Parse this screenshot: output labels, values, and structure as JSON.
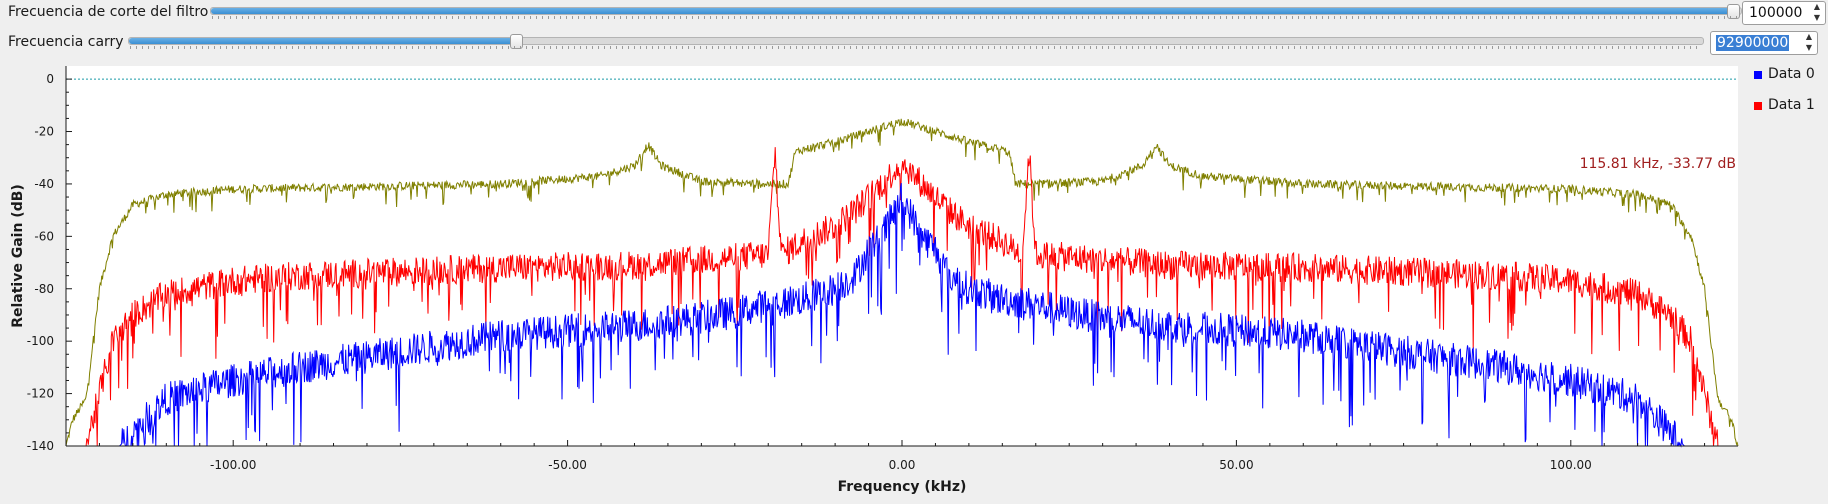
{
  "controls": {
    "cutoff": {
      "label": "Frecuencia de corte del filtro",
      "value": "100000",
      "slider_fraction": 0.995
    },
    "carry": {
      "label": "Frecuencia carry",
      "value": "92900000",
      "slider_fraction": 0.246,
      "value_selected": true
    }
  },
  "legend": {
    "items": [
      {
        "label": "Data 0",
        "color": "#0000ff"
      },
      {
        "label": "Data 1",
        "color": "#ff0000"
      }
    ]
  },
  "marker": {
    "readout": "115.81 kHz, -33.77 dB"
  },
  "chart_data": {
    "type": "line",
    "xlabel": "Frequency (kHz)",
    "ylabel": "Relative Gain (dB)",
    "xlim": [
      -125,
      125
    ],
    "ylim": [
      -140,
      5
    ],
    "xticks": [
      -100,
      -50,
      0,
      50,
      100
    ],
    "xtick_labels": [
      "-100.00",
      "-50.00",
      "0.00",
      "50.00",
      "100.00"
    ],
    "yticks": [
      0,
      -20,
      -40,
      -60,
      -80,
      -100,
      -120,
      -140
    ],
    "ytick_labels": [
      "0",
      "-20",
      "-40",
      "-60",
      "-80",
      "-100",
      "-120",
      "-140"
    ],
    "reference_line": {
      "y": 0,
      "color": "#1b9aa6",
      "style": "dotted"
    },
    "grid": false,
    "legend_position": "right",
    "series": [
      {
        "name": "Data 0",
        "color": "#0000ff",
        "x": [
          -117,
          -110,
          -100,
          -90,
          -80,
          -70,
          -60,
          -50,
          -40,
          -30,
          -25,
          -20,
          -15,
          -10,
          -7,
          -5,
          -3,
          -2,
          0,
          2,
          3,
          5,
          7,
          10,
          15,
          20,
          25,
          30,
          40,
          50,
          60,
          70,
          80,
          90,
          100,
          110,
          117
        ],
        "y": [
          -140,
          -122,
          -115,
          -110,
          -106,
          -102,
          -98,
          -96,
          -94,
          -91,
          -89,
          -86,
          -84,
          -80,
          -75,
          -65,
          -60,
          -55,
          -45,
          -55,
          -60,
          -65,
          -75,
          -80,
          -84,
          -86,
          -89,
          -91,
          -94,
          -96,
          -98,
          -102,
          -106,
          -110,
          -115,
          -122,
          -140
        ],
        "noise_db": 8
      },
      {
        "name": "Data 1",
        "color": "#ff0000",
        "x": [
          -122,
          -118,
          -115,
          -110,
          -100,
          -90,
          -80,
          -60,
          -40,
          -30,
          -20,
          -19,
          -18,
          -15,
          -10,
          -7,
          -5,
          -3,
          0,
          3,
          5,
          7,
          10,
          15,
          18,
          19,
          20,
          30,
          40,
          60,
          80,
          90,
          100,
          110,
          115,
          118,
          122
        ],
        "y": [
          -140,
          -100,
          -90,
          -82,
          -77,
          -75,
          -74,
          -72,
          -71,
          -69,
          -67,
          -27,
          -67,
          -62,
          -56,
          -50,
          -45,
          -40,
          -32,
          -40,
          -45,
          -50,
          -56,
          -62,
          -67,
          -27,
          -67,
          -69,
          -71,
          -72,
          -74,
          -75,
          -77,
          -82,
          -90,
          -100,
          -140
        ],
        "noise_db": 7
      },
      {
        "name": "",
        "color": "#808000",
        "x": [
          -125,
          -124,
          -122,
          -120,
          -118,
          -115,
          -110,
          -100,
          -80,
          -60,
          -45,
          -40,
          -38,
          -36,
          -30,
          -20,
          -17,
          -16,
          -15,
          -10,
          -5,
          0,
          5,
          10,
          15,
          16,
          17,
          20,
          30,
          36,
          38,
          40,
          45,
          60,
          80,
          100,
          110,
          115,
          118,
          120,
          122,
          124,
          125
        ],
        "y": [
          -140,
          -130,
          -122,
          -80,
          -60,
          -48,
          -44,
          -42,
          -41,
          -40,
          -37,
          -33,
          -25,
          -33,
          -39,
          -40,
          -40,
          -28,
          -27,
          -24,
          -20,
          -16,
          -20,
          -24,
          -27,
          -28,
          -40,
          -40,
          -39,
          -33,
          -25,
          -33,
          -37,
          -40,
          -41,
          -42,
          -44,
          -48,
          -60,
          -80,
          -122,
          -130,
          -140
        ],
        "noise_db": 2
      }
    ]
  }
}
